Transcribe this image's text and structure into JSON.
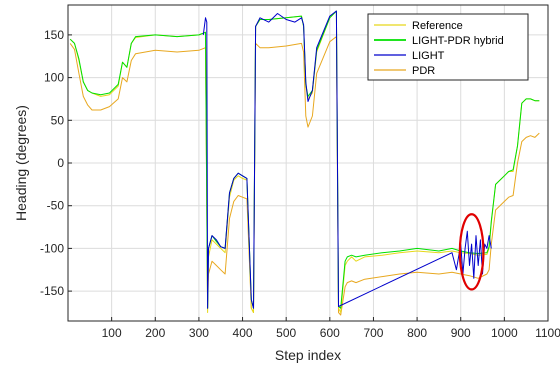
{
  "chart_data": {
    "type": "line",
    "title": "",
    "xlabel": "Step index",
    "ylabel": "Heading (degrees)",
    "xlim": [
      0,
      1100
    ],
    "ylim": [
      -185,
      185
    ],
    "xticks": [
      100,
      200,
      300,
      400,
      500,
      600,
      700,
      800,
      900,
      1000,
      1100
    ],
    "yticks": [
      -150,
      -100,
      -50,
      0,
      50,
      100,
      150
    ],
    "grid": true,
    "legend_position": "top-right",
    "colors": {
      "Reference": "#e6d81a",
      "LIGHT-PDR hybrid": "#00e000",
      "LIGHT": "#0000cc",
      "PDR": "#e8a820",
      "highlight": "#e00000"
    },
    "series": [
      {
        "name": "Reference",
        "x": [
          5,
          15,
          25,
          35,
          45,
          55,
          75,
          95,
          115,
          125,
          135,
          145,
          155,
          200,
          250,
          300,
          315,
          320,
          322,
          330,
          340,
          350,
          360,
          370,
          380,
          390,
          400,
          410,
          420,
          425,
          430,
          440,
          460,
          500,
          535,
          540,
          545,
          550,
          560,
          570,
          600,
          615,
          620,
          625,
          635,
          640,
          650,
          660,
          680,
          720,
          760,
          800,
          850,
          880,
          900,
          920,
          940,
          960,
          965,
          970,
          980,
          1000,
          1010,
          1020,
          1030,
          1040,
          1050,
          1060,
          1070,
          1080
        ],
        "y": [
          145,
          140,
          120,
          95,
          85,
          82,
          78,
          80,
          90,
          118,
          112,
          140,
          147,
          150,
          148,
          150,
          153,
          -175,
          -110,
          -90,
          -95,
          -100,
          -105,
          -40,
          -20,
          -15,
          -18,
          -20,
          -170,
          -175,
          160,
          168,
          168,
          170,
          172,
          160,
          90,
          75,
          82,
          130,
          170,
          178,
          -170,
          -175,
          -120,
          -115,
          -110,
          -115,
          -110,
          -108,
          -105,
          -103,
          -105,
          -103,
          -105,
          -106,
          -108,
          -107,
          -100,
          -70,
          -25,
          -15,
          -10,
          -10,
          20,
          70,
          75,
          75,
          73,
          73
        ]
      },
      {
        "name": "LIGHT-PDR hybrid",
        "x": [
          5,
          15,
          25,
          35,
          45,
          55,
          75,
          95,
          115,
          125,
          135,
          145,
          155,
          200,
          250,
          300,
          315,
          320,
          322,
          330,
          340,
          350,
          360,
          370,
          380,
          390,
          400,
          410,
          420,
          425,
          430,
          440,
          460,
          500,
          535,
          540,
          545,
          550,
          560,
          570,
          600,
          615,
          620,
          625,
          635,
          640,
          650,
          660,
          680,
          720,
          760,
          800,
          850,
          880,
          900,
          920,
          940,
          960,
          965,
          970,
          980,
          1000,
          1010,
          1020,
          1030,
          1040,
          1050,
          1060,
          1070,
          1080
        ],
        "y": [
          145,
          140,
          122,
          95,
          85,
          82,
          80,
          82,
          92,
          118,
          112,
          140,
          148,
          150,
          148,
          150,
          153,
          -170,
          -100,
          -85,
          -92,
          -98,
          -100,
          -35,
          -18,
          -12,
          -15,
          -18,
          -160,
          -170,
          160,
          168,
          168,
          170,
          172,
          160,
          92,
          78,
          85,
          132,
          170,
          178,
          -168,
          -170,
          -115,
          -110,
          -108,
          -110,
          -108,
          -105,
          -103,
          -100,
          -103,
          -100,
          -103,
          -105,
          -106,
          -105,
          -98,
          -68,
          -25,
          -15,
          -10,
          -8,
          20,
          70,
          75,
          75,
          73,
          73
        ]
      },
      {
        "name": "LIGHT",
        "x": [
          310,
          315,
          318,
          320,
          322,
          330,
          340,
          350,
          360,
          370,
          380,
          390,
          400,
          410,
          420,
          425,
          430,
          440,
          460,
          480,
          500,
          520,
          535,
          540,
          545,
          550,
          560,
          570,
          600,
          615,
          620,
          880,
          890,
          900,
          905,
          910,
          915,
          920,
          925,
          930,
          935,
          940,
          945,
          950,
          955,
          960,
          965,
          970
        ],
        "y": [
          150,
          170,
          165,
          -170,
          -100,
          -85,
          -90,
          -98,
          -100,
          -35,
          -18,
          -12,
          -15,
          -18,
          -160,
          -170,
          160,
          170,
          165,
          175,
          168,
          165,
          170,
          162,
          95,
          72,
          85,
          135,
          172,
          178,
          -168,
          -105,
          -125,
          -95,
          -130,
          -100,
          -80,
          -120,
          -95,
          -135,
          -85,
          -120,
          -90,
          -130,
          -95,
          -100,
          -85,
          -100
        ]
      },
      {
        "name": "PDR",
        "x": [
          5,
          15,
          25,
          35,
          45,
          55,
          75,
          95,
          115,
          125,
          135,
          145,
          155,
          200,
          250,
          300,
          315,
          320,
          322,
          330,
          340,
          350,
          360,
          370,
          380,
          390,
          400,
          410,
          420,
          425,
          430,
          440,
          460,
          500,
          535,
          540,
          545,
          550,
          560,
          570,
          600,
          615,
          620,
          625,
          635,
          640,
          650,
          660,
          680,
          720,
          760,
          800,
          850,
          880,
          900,
          920,
          940,
          960,
          965,
          970,
          980,
          1000,
          1010,
          1020,
          1030,
          1040,
          1050,
          1060,
          1070,
          1080
        ],
        "y": [
          140,
          133,
          105,
          78,
          68,
          62,
          62,
          66,
          75,
          100,
          95,
          120,
          128,
          132,
          130,
          132,
          135,
          -170,
          -130,
          -115,
          -120,
          -125,
          -130,
          -65,
          -45,
          -38,
          -40,
          -42,
          -170,
          -175,
          140,
          135,
          135,
          137,
          140,
          130,
          55,
          42,
          55,
          105,
          142,
          148,
          -175,
          -178,
          -145,
          -140,
          -138,
          -140,
          -136,
          -133,
          -130,
          -128,
          -130,
          -128,
          -130,
          -132,
          -135,
          -130,
          -125,
          -95,
          -55,
          -45,
          -40,
          -38,
          0,
          25,
          30,
          32,
          30,
          35
        ]
      }
    ],
    "annotations": [
      {
        "type": "ellipse",
        "color": "#e00000",
        "center": [
          925,
          -104
        ],
        "rx": 27,
        "ry": 44
      }
    ]
  }
}
